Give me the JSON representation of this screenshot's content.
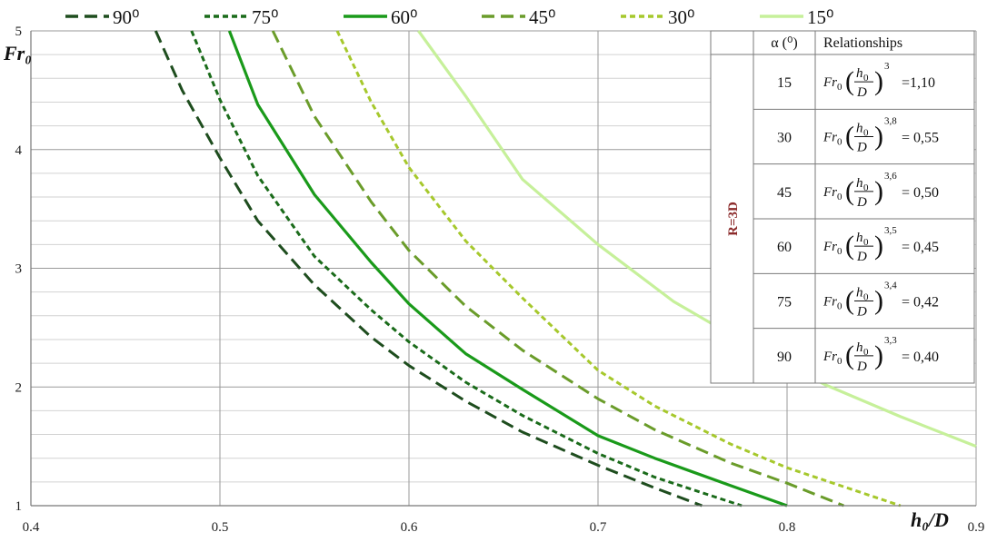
{
  "chart_data": {
    "type": "line",
    "xlabel": "h₀/D",
    "ylabel": "Fr₀",
    "xlim": [
      0.4,
      0.9
    ],
    "ylim": [
      1,
      5
    ],
    "x_ticks": [
      "0.4",
      "0.5",
      "0.6",
      "0.7",
      "0.8",
      "0.9"
    ],
    "y_ticks": [
      "1",
      "2",
      "3",
      "4",
      "5"
    ],
    "grid": true,
    "legend_position": "top",
    "series": [
      {
        "name": "90⁰",
        "color": "#1e4d1e",
        "dash": "long-dash",
        "x": [
          0.466,
          0.48,
          0.5,
          0.52,
          0.55,
          0.58,
          0.6,
          0.63,
          0.66,
          0.7,
          0.73,
          0.755
        ],
        "y": [
          5.0,
          4.5,
          3.93,
          3.4,
          2.86,
          2.42,
          2.18,
          1.88,
          1.62,
          1.34,
          1.15,
          1.0
        ]
      },
      {
        "name": "75⁰",
        "color": "#1a6b1a",
        "dash": "short-dash",
        "x": [
          0.485,
          0.5,
          0.52,
          0.55,
          0.58,
          0.6,
          0.63,
          0.66,
          0.7,
          0.73,
          0.776
        ],
        "y": [
          5.0,
          4.42,
          3.78,
          3.1,
          2.65,
          2.38,
          2.04,
          1.76,
          1.44,
          1.24,
          1.0
        ]
      },
      {
        "name": "60⁰",
        "color": "#1a9a1a",
        "dash": "solid",
        "x": [
          0.505,
          0.52,
          0.55,
          0.58,
          0.6,
          0.63,
          0.66,
          0.7,
          0.73,
          0.77,
          0.8
        ],
        "y": [
          5.0,
          4.38,
          3.62,
          3.05,
          2.7,
          2.28,
          1.98,
          1.59,
          1.4,
          1.17,
          1.0
        ]
      },
      {
        "name": "45⁰",
        "color": "#6a9c2a",
        "dash": "long-dash",
        "x": [
          0.528,
          0.55,
          0.58,
          0.6,
          0.63,
          0.66,
          0.7,
          0.73,
          0.77,
          0.8,
          0.83
        ],
        "y": [
          5.0,
          4.28,
          3.56,
          3.15,
          2.68,
          2.31,
          1.9,
          1.64,
          1.36,
          1.19,
          1.0
        ]
      },
      {
        "name": "30⁰",
        "color": "#a6c82c",
        "dash": "short-dash",
        "x": [
          0.562,
          0.58,
          0.6,
          0.63,
          0.66,
          0.7,
          0.73,
          0.77,
          0.8,
          0.83,
          0.86
        ],
        "y": [
          5.0,
          4.4,
          3.85,
          3.23,
          2.75,
          2.14,
          1.84,
          1.52,
          1.32,
          1.16,
          1.0
        ]
      },
      {
        "name": "15⁰",
        "color": "#c6f09a",
        "dash": "solid",
        "x": [
          0.605,
          0.63,
          0.66,
          0.7,
          0.74,
          0.78,
          0.82,
          0.86,
          0.9
        ],
        "y": [
          5.0,
          4.45,
          3.75,
          3.2,
          2.72,
          2.35,
          2.02,
          1.75,
          1.5
        ]
      }
    ]
  },
  "table": {
    "group_label": "R=3D",
    "header_alpha": "α (⁰)",
    "header_rel": "Relationships",
    "rows": [
      {
        "alpha": "15",
        "exp": "3",
        "value": "=1,10"
      },
      {
        "alpha": "30",
        "exp": "3,8",
        "value": "= 0,55"
      },
      {
        "alpha": "45",
        "exp": "3,6",
        "value": "= 0,50"
      },
      {
        "alpha": "60",
        "exp": "3,5",
        "value": "= 0,45"
      },
      {
        "alpha": "75",
        "exp": "3,4",
        "value": "= 0,42"
      },
      {
        "alpha": "90",
        "exp": "3,3",
        "value": "= 0,40"
      }
    ]
  }
}
